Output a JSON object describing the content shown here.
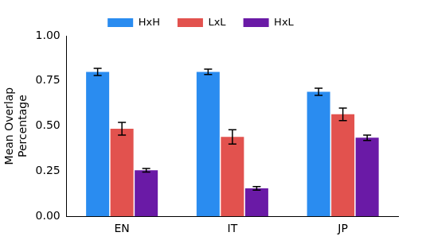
{
  "chart_data": {
    "type": "bar",
    "y_label": [
      "Mean Overlap",
      "Percentage"
    ],
    "categories": [
      "EN",
      "IT",
      "JP"
    ],
    "series": [
      {
        "name": "HxH",
        "color": "#2a8cf0",
        "values": [
          0.8,
          0.8,
          0.69
        ],
        "errors": [
          0.02,
          0.015,
          0.02
        ]
      },
      {
        "name": "LxL",
        "color": "#e2524e",
        "values": [
          0.485,
          0.44,
          0.565
        ],
        "errors": [
          0.035,
          0.04,
          0.035
        ]
      },
      {
        "name": "HxL",
        "color": "#6a1aa6",
        "values": [
          0.255,
          0.155,
          0.435
        ],
        "errors": [
          0.01,
          0.01,
          0.015
        ]
      }
    ],
    "ylim": [
      0,
      1
    ],
    "yticks": [
      {
        "value": 0,
        "label": "0.00"
      },
      {
        "value": 0.25,
        "label": "0.25"
      },
      {
        "value": 0.5,
        "label": "0.50"
      },
      {
        "value": 0.75,
        "label": "0.75"
      },
      {
        "value": 1,
        "label": "1.00"
      }
    ],
    "grid": false,
    "legend": "top"
  }
}
